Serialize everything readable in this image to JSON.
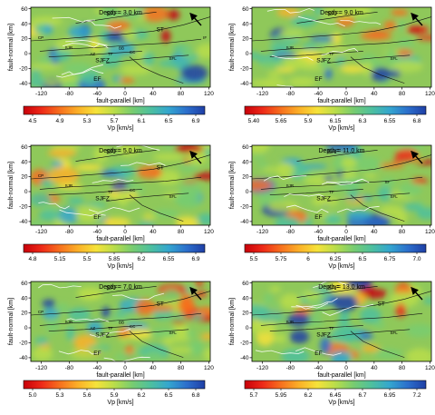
{
  "chart_data": [
    {
      "type": "heatmap",
      "title": "Depth = 3.0 km",
      "xlabel": "fault-parallel [km]",
      "ylabel": "fault-normal [km]",
      "x_ticks": [
        -120,
        -80,
        -40,
        0,
        40,
        80,
        120
      ],
      "y_ticks": [
        -40,
        -20,
        0,
        20,
        40,
        60
      ],
      "xlim": [
        -135,
        122
      ],
      "ylim": [
        -45,
        62
      ],
      "labels": [
        "SAF",
        "ST",
        "CP",
        "SJFZ",
        "SJR",
        "TF",
        "AZ",
        "BB",
        "CC",
        "EF",
        "SFL",
        "IF"
      ],
      "colorbar": {
        "label": "Vp [km/s]",
        "ticks": [
          "4.5",
          "4.9",
          "5.3",
          "5.7",
          "6.1",
          "6.5",
          "6.9"
        ],
        "vmin": 4.5,
        "vmax": 6.9
      }
    },
    {
      "type": "heatmap",
      "title": "Depth = 9.0 km",
      "xlabel": "fault-parallel [km]",
      "ylabel": "fault-normal [km]",
      "x_ticks": [
        -120,
        -80,
        -40,
        0,
        40,
        80,
        120
      ],
      "y_ticks": [
        -40,
        -20,
        0,
        20,
        40,
        60
      ],
      "xlim": [
        -135,
        122
      ],
      "ylim": [
        -45,
        62
      ],
      "labels": [
        "SAF",
        "SJFZ",
        "SJR",
        "TF",
        "EF",
        "SFL"
      ],
      "colorbar": {
        "label": "Vp [km/s]",
        "ticks": [
          "5.40",
          "5.65",
          "5.9",
          "6.15",
          "6.3",
          "6.55",
          "6.8"
        ],
        "vmin": 5.4,
        "vmax": 6.8
      }
    },
    {
      "type": "heatmap",
      "title": "Depth = 5.0 km",
      "xlabel": "fault-parallel [km]",
      "ylabel": "fault-normal [km]",
      "x_ticks": [
        -120,
        -80,
        -40,
        0,
        40,
        80,
        120
      ],
      "y_ticks": [
        -40,
        -20,
        0,
        20,
        40,
        60
      ],
      "xlim": [
        -135,
        122
      ],
      "ylim": [
        -45,
        62
      ],
      "labels": [
        "SAF",
        "ST",
        "CP",
        "SJFZ",
        "SJR",
        "TF",
        "CC",
        "EF",
        "SFL"
      ],
      "colorbar": {
        "label": "Vp [km/s]",
        "ticks": [
          "4.8",
          "5.15",
          "5.5",
          "5.85",
          "6.2",
          "6.55",
          "6.9"
        ],
        "vmin": 4.8,
        "vmax": 6.9
      }
    },
    {
      "type": "heatmap",
      "title": "Depth = 11.0 km",
      "xlabel": "fault-parallel [km]",
      "ylabel": "fault-normal [km]",
      "x_ticks": [
        -120,
        -80,
        -40,
        0,
        40,
        80,
        120
      ],
      "y_ticks": [
        -40,
        -20,
        0,
        20,
        40,
        60
      ],
      "xlim": [
        -135,
        122
      ],
      "ylim": [
        -45,
        62
      ],
      "labels": [
        "SAF",
        "SJFZ",
        "SJR",
        "TF",
        "EF",
        "SF",
        "SFL"
      ],
      "colorbar": {
        "label": "Vp [km/s]",
        "ticks": [
          "5.5",
          "5.75",
          "6",
          "6.25",
          "6.5",
          "6.75",
          "7.0"
        ],
        "vmin": 5.5,
        "vmax": 7.0
      }
    },
    {
      "type": "heatmap",
      "title": "Depth = 7.0 km",
      "xlabel": "fault-parallel [km]",
      "ylabel": "fault-normal [km]",
      "x_ticks": [
        -120,
        -80,
        -40,
        0,
        40,
        80,
        120
      ],
      "y_ticks": [
        -40,
        -20,
        0,
        20,
        40,
        60
      ],
      "xlim": [
        -135,
        122
      ],
      "ylim": [
        -45,
        62
      ],
      "labels": [
        "SAF",
        "ST",
        "CP",
        "SJFZ",
        "SJR",
        "TF",
        "AZ",
        "BB",
        "CC",
        "EF",
        "SFL"
      ],
      "colorbar": {
        "label": "Vp [km/s]",
        "ticks": [
          "5.0",
          "5.3",
          "5.6",
          "5.9",
          "6.2",
          "6.5",
          "6.8"
        ],
        "vmin": 5.0,
        "vmax": 6.8
      }
    },
    {
      "type": "heatmap",
      "title": "Depth = 13.0 km",
      "xlabel": "fault-parallel [km]",
      "ylabel": "fault-normal [km]",
      "x_ticks": [
        -120,
        -80,
        -40,
        0,
        40,
        80,
        120
      ],
      "y_ticks": [
        -40,
        -20,
        0,
        20,
        40,
        60
      ],
      "xlim": [
        -135,
        122
      ],
      "ylim": [
        -45,
        62
      ],
      "labels": [
        "SAF",
        "ST",
        "SJFZ",
        "SJR",
        "TF",
        "EF",
        "SFL"
      ],
      "colorbar": {
        "label": "Vp [km/s]",
        "ticks": [
          "5.7",
          "5.95",
          "6.2",
          "6.45",
          "6.7",
          "6.95",
          "7.2"
        ],
        "vmin": 5.7,
        "vmax": 7.2
      }
    }
  ],
  "colormap": [
    "#c8000a",
    "#ee2a18",
    "#f7701e",
    "#fbb028",
    "#f6e23a",
    "#b9dd4a",
    "#78cc70",
    "#4ec09e",
    "#34a6cf",
    "#2c6fcc",
    "#1f3fa6"
  ],
  "background_color": "#8fc85a"
}
